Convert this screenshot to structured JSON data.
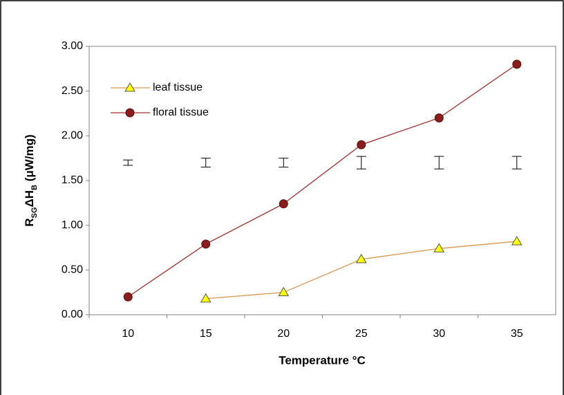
{
  "chart_data": {
    "type": "line",
    "xlabel": "Temperature °C",
    "ylabel": [
      "R",
      "SG",
      "ΔH",
      "B",
      " (μW/mg)"
    ],
    "categories": [
      10,
      15,
      20,
      25,
      30,
      35
    ],
    "series": [
      {
        "name": "leaf tissue",
        "color": "#d9964a",
        "marker": "triangle",
        "marker_color": "#ffff00",
        "values": [
          null,
          0.18,
          0.25,
          0.62,
          0.74,
          0.82
        ]
      },
      {
        "name": "floral tissue",
        "color": "#a52a2a",
        "marker": "circle",
        "marker_color": "#8b1c1c",
        "values": [
          0.2,
          0.79,
          1.24,
          1.9,
          2.2,
          2.8
        ]
      }
    ],
    "error_bars": {
      "values": [
        1.7,
        1.7,
        1.7,
        1.7,
        1.7,
        1.7
      ],
      "errors": [
        0.03,
        0.05,
        0.05,
        0.07,
        0.07,
        0.07
      ]
    },
    "ylim": [
      0,
      3
    ],
    "yticks": [
      {
        "value": 0,
        "label": "0.00"
      },
      {
        "value": 0.5,
        "label": "0.50"
      },
      {
        "value": 1,
        "label": "1.00"
      },
      {
        "value": 1.5,
        "label": "1.50"
      },
      {
        "value": 2,
        "label": "2.00"
      },
      {
        "value": 2.5,
        "label": "2.50"
      },
      {
        "value": 3,
        "label": "3.00"
      }
    ],
    "grid": false,
    "legend": "upper left"
  }
}
